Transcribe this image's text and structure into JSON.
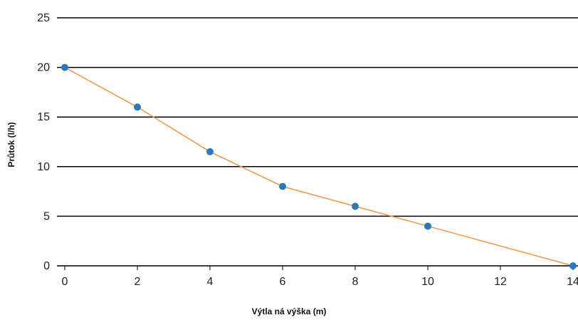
{
  "chart_data": {
    "type": "line",
    "title": "",
    "xlabel": "Výtla ná výška (m)",
    "ylabel": "Průtok (l/h)",
    "xlim": [
      0,
      14
    ],
    "ylim": [
      0,
      25
    ],
    "x_ticks": [
      0,
      2,
      4,
      6,
      8,
      10,
      12,
      14
    ],
    "y_ticks": [
      0,
      5,
      10,
      15,
      20,
      25
    ],
    "grid": "horizontal",
    "legend": "none",
    "colors": {
      "line": "#f0954a",
      "marker": "#2b78b9",
      "grid": "#000000"
    },
    "series": [
      {
        "x": [
          0,
          2,
          4,
          6,
          8,
          10,
          14
        ],
        "y": [
          20,
          16,
          11.5,
          8,
          6,
          4,
          0
        ]
      }
    ]
  }
}
